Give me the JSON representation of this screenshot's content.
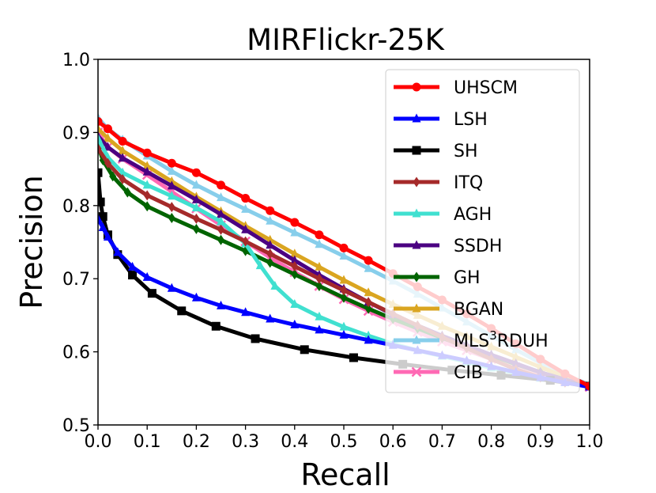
{
  "chart_data": {
    "type": "line",
    "title": "MIRFlickr-25K",
    "xlabel": "Recall",
    "ylabel": "Precision",
    "xlim": [
      0.0,
      1.0
    ],
    "ylim": [
      0.5,
      1.0
    ],
    "xticks": [
      "0.0",
      "0.1",
      "0.2",
      "0.3",
      "0.4",
      "0.5",
      "0.6",
      "0.7",
      "0.8",
      "0.9",
      "1.0"
    ],
    "yticks": [
      "0.5",
      "0.6",
      "0.7",
      "0.8",
      "0.9",
      "1.0"
    ],
    "legend_position": "top-right",
    "series": [
      {
        "name": "UHSCM",
        "legend_main": "UHSCM",
        "legend_sup": "",
        "legend_tail": "",
        "color": "#ff0000",
        "marker": "circle",
        "x": [
          0.0,
          0.02,
          0.05,
          0.1,
          0.15,
          0.2,
          0.25,
          0.3,
          0.35,
          0.4,
          0.45,
          0.5,
          0.55,
          0.6,
          0.65,
          0.7,
          0.75,
          0.8,
          0.85,
          0.9,
          0.95,
          1.0
        ],
        "y": [
          0.915,
          0.905,
          0.888,
          0.872,
          0.858,
          0.845,
          0.828,
          0.81,
          0.793,
          0.777,
          0.76,
          0.742,
          0.725,
          0.707,
          0.689,
          0.671,
          0.652,
          0.632,
          0.611,
          0.59,
          0.57,
          0.553
        ]
      },
      {
        "name": "LSH",
        "legend_main": "LSH",
        "legend_sup": "",
        "legend_tail": "",
        "color": "#0000ff",
        "marker": "tri",
        "x": [
          0.0,
          0.01,
          0.02,
          0.04,
          0.07,
          0.1,
          0.15,
          0.2,
          0.25,
          0.3,
          0.35,
          0.4,
          0.45,
          0.5,
          0.55,
          0.6,
          0.65,
          0.7,
          0.75,
          0.8,
          0.85,
          0.9,
          0.95,
          1.0
        ],
        "y": [
          0.782,
          0.77,
          0.757,
          0.736,
          0.716,
          0.702,
          0.687,
          0.674,
          0.663,
          0.654,
          0.645,
          0.637,
          0.63,
          0.623,
          0.616,
          0.609,
          0.602,
          0.595,
          0.588,
          0.58,
          0.572,
          0.565,
          0.558,
          0.552
        ]
      },
      {
        "name": "SH",
        "legend_main": "SH",
        "legend_sup": "",
        "legend_tail": "",
        "color": "#000000",
        "marker": "square",
        "x": [
          0.0,
          0.005,
          0.01,
          0.02,
          0.04,
          0.07,
          0.11,
          0.17,
          0.24,
          0.32,
          0.42,
          0.52,
          0.62,
          0.72,
          0.82,
          0.92,
          1.0
        ],
        "y": [
          0.845,
          0.805,
          0.785,
          0.76,
          0.733,
          0.705,
          0.68,
          0.656,
          0.635,
          0.618,
          0.603,
          0.592,
          0.583,
          0.575,
          0.568,
          0.561,
          0.553
        ]
      },
      {
        "name": "ITQ",
        "legend_main": "ITQ",
        "legend_sup": "",
        "legend_tail": "",
        "color": "#a52a2a",
        "marker": "diamond",
        "x": [
          0.0,
          0.02,
          0.05,
          0.1,
          0.15,
          0.2,
          0.25,
          0.3,
          0.35,
          0.4,
          0.45,
          0.5,
          0.55,
          0.6,
          0.65,
          0.7,
          0.75,
          0.8,
          0.85,
          0.9,
          0.95,
          1.0
        ],
        "y": [
          0.878,
          0.858,
          0.836,
          0.814,
          0.798,
          0.782,
          0.767,
          0.751,
          0.734,
          0.717,
          0.7,
          0.684,
          0.668,
          0.652,
          0.636,
          0.62,
          0.605,
          0.59,
          0.576,
          0.565,
          0.558,
          0.553
        ]
      },
      {
        "name": "AGH",
        "legend_main": "AGH",
        "legend_sup": "",
        "legend_tail": "",
        "color": "#40e0d0",
        "marker": "tri",
        "x": [
          0.0,
          0.02,
          0.05,
          0.1,
          0.15,
          0.2,
          0.25,
          0.3,
          0.33,
          0.36,
          0.4,
          0.45,
          0.5,
          0.55,
          0.6,
          0.65,
          0.7,
          0.75,
          0.8,
          0.85,
          0.9,
          0.95,
          1.0
        ],
        "y": [
          0.892,
          0.866,
          0.845,
          0.828,
          0.813,
          0.797,
          0.778,
          0.748,
          0.718,
          0.69,
          0.665,
          0.648,
          0.634,
          0.622,
          0.611,
          0.602,
          0.594,
          0.586,
          0.578,
          0.571,
          0.564,
          0.558,
          0.553
        ]
      },
      {
        "name": "SSDH",
        "legend_main": "SSDH",
        "legend_sup": "",
        "legend_tail": "",
        "color": "#4b0082",
        "marker": "tri",
        "x": [
          0.0,
          0.02,
          0.05,
          0.1,
          0.15,
          0.2,
          0.25,
          0.3,
          0.35,
          0.4,
          0.45,
          0.5,
          0.55,
          0.6,
          0.65,
          0.7,
          0.75,
          0.8,
          0.85,
          0.9,
          0.95,
          1.0
        ],
        "y": [
          0.895,
          0.88,
          0.865,
          0.846,
          0.827,
          0.808,
          0.788,
          0.767,
          0.746,
          0.725,
          0.705,
          0.686,
          0.668,
          0.651,
          0.636,
          0.622,
          0.609,
          0.596,
          0.584,
          0.572,
          0.562,
          0.553
        ]
      },
      {
        "name": "GH",
        "legend_main": "GH",
        "legend_sup": "",
        "legend_tail": "",
        "color": "#006400",
        "marker": "diamond",
        "x": [
          0.0,
          0.01,
          0.03,
          0.06,
          0.1,
          0.15,
          0.2,
          0.25,
          0.3,
          0.35,
          0.4,
          0.45,
          0.5,
          0.55,
          0.6,
          0.65,
          0.7,
          0.75,
          0.8,
          0.85,
          0.9,
          0.95,
          1.0
        ],
        "y": [
          0.882,
          0.862,
          0.84,
          0.818,
          0.799,
          0.783,
          0.768,
          0.753,
          0.738,
          0.722,
          0.706,
          0.69,
          0.674,
          0.659,
          0.645,
          0.632,
          0.619,
          0.607,
          0.595,
          0.583,
          0.572,
          0.562,
          0.553
        ]
      },
      {
        "name": "BGAN",
        "legend_main": "BGAN",
        "legend_sup": "",
        "legend_tail": "",
        "color": "#daa520",
        "marker": "tri",
        "x": [
          0.0,
          0.02,
          0.05,
          0.1,
          0.15,
          0.2,
          0.25,
          0.3,
          0.35,
          0.4,
          0.45,
          0.5,
          0.55,
          0.6,
          0.65,
          0.7,
          0.75,
          0.8,
          0.85,
          0.9,
          0.95,
          1.0
        ],
        "y": [
          0.905,
          0.892,
          0.875,
          0.854,
          0.833,
          0.812,
          0.792,
          0.772,
          0.753,
          0.734,
          0.716,
          0.698,
          0.681,
          0.665,
          0.65,
          0.635,
          0.621,
          0.607,
          0.593,
          0.579,
          0.566,
          0.553
        ]
      },
      {
        "name": "MLS3RDUH",
        "legend_main": "MLS",
        "legend_sup": "3",
        "legend_tail": "RDUH",
        "color": "#87ceeb",
        "marker": "tri",
        "x": [
          0.0,
          0.02,
          0.05,
          0.1,
          0.15,
          0.2,
          0.25,
          0.3,
          0.35,
          0.4,
          0.45,
          0.5,
          0.55,
          0.6,
          0.65,
          0.7,
          0.75,
          0.8,
          0.85,
          0.9,
          0.95,
          1.0
        ],
        "y": [
          0.92,
          0.905,
          0.89,
          0.868,
          0.847,
          0.828,
          0.811,
          0.795,
          0.779,
          0.763,
          0.747,
          0.731,
          0.714,
          0.697,
          0.679,
          0.66,
          0.641,
          0.622,
          0.603,
          0.585,
          0.568,
          0.555
        ]
      },
      {
        "name": "CIB",
        "legend_main": "CIB",
        "legend_sup": "",
        "legend_tail": "",
        "color": "#ff69b4",
        "marker": "x",
        "x": [
          0.0,
          0.02,
          0.05,
          0.1,
          0.15,
          0.2,
          0.25,
          0.3,
          0.35,
          0.4,
          0.45,
          0.5,
          0.55,
          0.6,
          0.65,
          0.7,
          0.75,
          0.8,
          0.85,
          0.9,
          0.95,
          1.0
        ],
        "y": [
          0.9,
          0.88,
          0.864,
          0.842,
          0.819,
          0.796,
          0.773,
          0.751,
          0.729,
          0.709,
          0.69,
          0.672,
          0.656,
          0.641,
          0.627,
          0.614,
          0.602,
          0.59,
          0.579,
          0.569,
          0.56,
          0.552
        ]
      }
    ]
  }
}
